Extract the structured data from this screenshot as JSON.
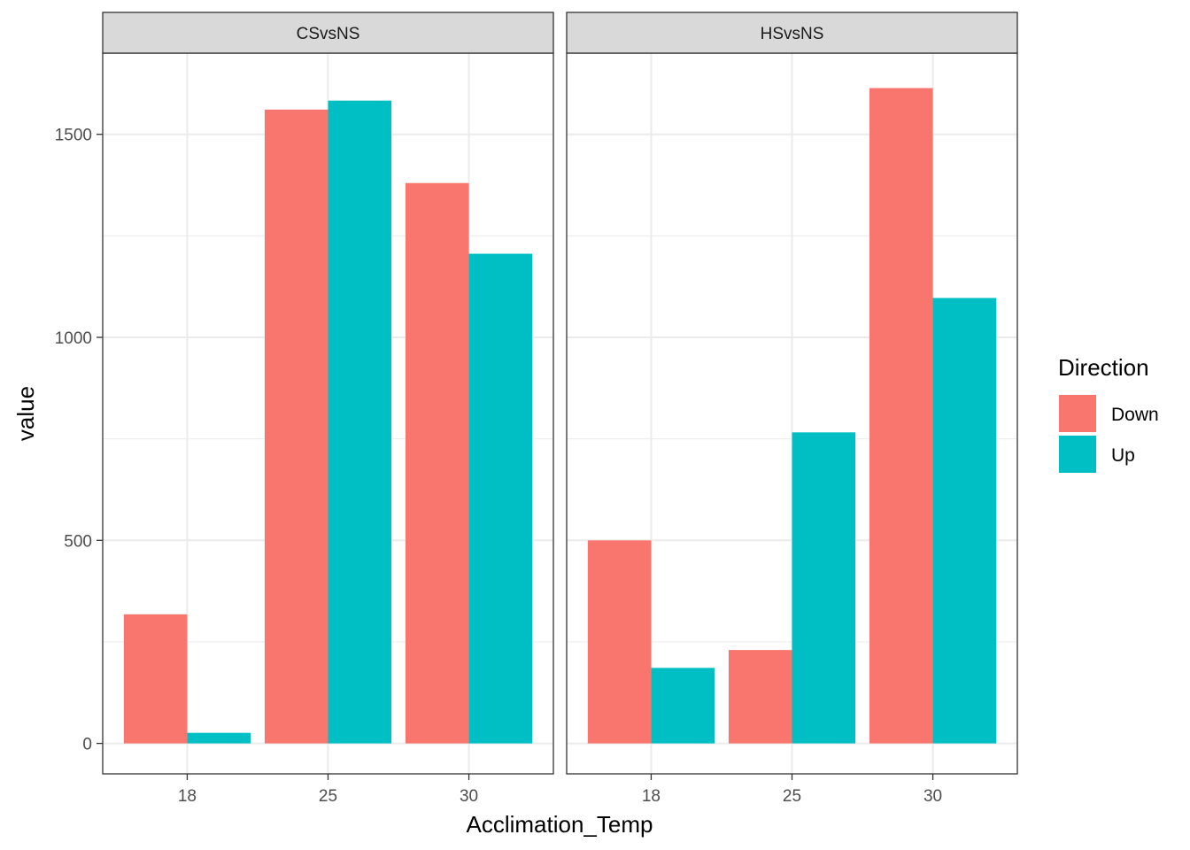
{
  "chart_data": {
    "type": "bar",
    "xlabel": "Acclimation_Temp",
    "ylabel": "value",
    "ylim": [
      -75,
      1700
    ],
    "yticks": [
      0,
      500,
      1000,
      1500
    ],
    "categories": [
      "18",
      "25",
      "30"
    ],
    "legend": {
      "title": "Direction",
      "position": "right",
      "entries": [
        "Down",
        "Up"
      ]
    },
    "colors": {
      "Down": "#F8766D",
      "Up": "#00BFC4"
    },
    "grid": true,
    "panels": [
      {
        "name": "CSvsNS",
        "series": [
          {
            "name": "Down",
            "values": [
              318,
              1561,
              1380
            ]
          },
          {
            "name": "Up",
            "values": [
              26,
              1583,
              1206
            ]
          }
        ]
      },
      {
        "name": "HSvsNS",
        "series": [
          {
            "name": "Down",
            "values": [
              500,
              230,
              1614
            ]
          },
          {
            "name": "Up",
            "values": [
              186,
              766,
              1097
            ]
          }
        ]
      }
    ]
  }
}
